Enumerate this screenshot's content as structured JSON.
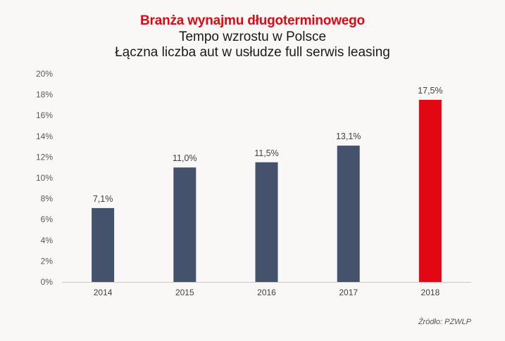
{
  "chart_data": {
    "type": "bar",
    "title": "Branża wynajmu długoterminowego",
    "subtitles": [
      "Tempo wzrostu w Polsce",
      "Łączna liczba aut w usłudze full serwis leasing"
    ],
    "categories": [
      "2014",
      "2015",
      "2016",
      "2017",
      "2018"
    ],
    "values": [
      7.1,
      11.0,
      11.5,
      13.1,
      17.5
    ],
    "value_labels": [
      "7,1%",
      "11,0%",
      "11,5%",
      "13,1%",
      "17,5%"
    ],
    "ylim": [
      0,
      20
    ],
    "yticks": [
      "0%",
      "2%",
      "4%",
      "6%",
      "8%",
      "10%",
      "12%",
      "14%",
      "16%",
      "18%",
      "20%"
    ],
    "xlabel": "",
    "ylabel": "",
    "grid": false,
    "bar_colors": [
      "#44536b",
      "#44536b",
      "#44536b",
      "#44536b",
      "#e30613"
    ],
    "title_color": "#e30613"
  },
  "source": "Źródło: PZWLP"
}
